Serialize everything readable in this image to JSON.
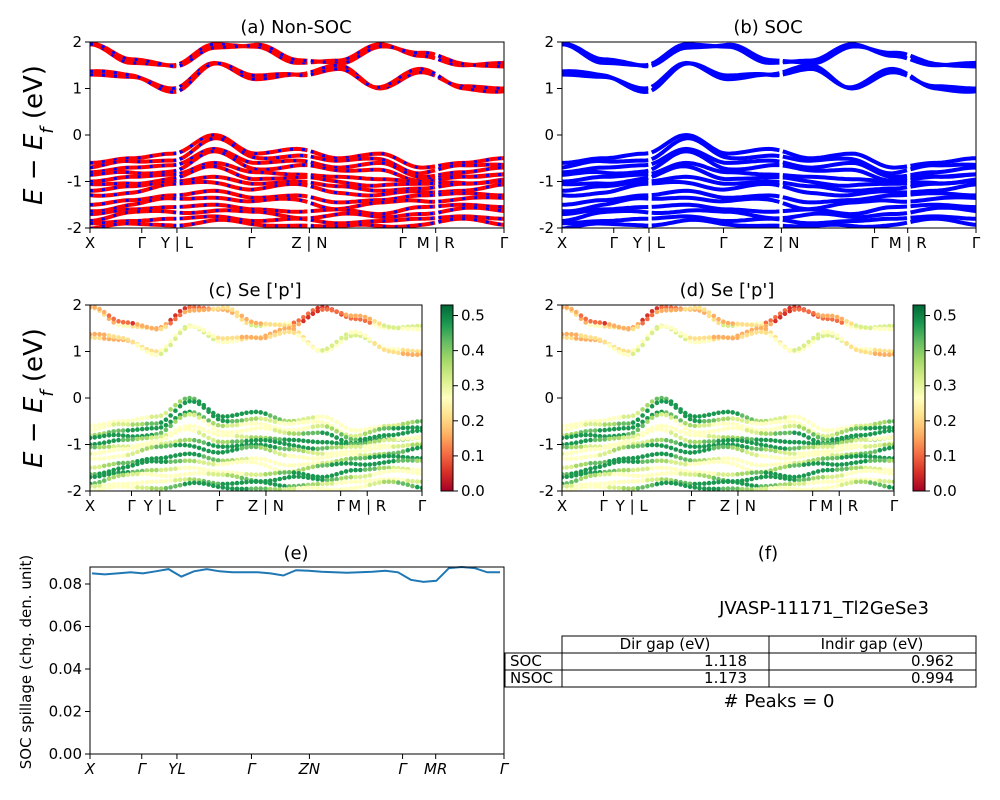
{
  "chart_data": [
    {
      "panel": "a",
      "type": "line",
      "title": "(a) Non-SOC",
      "ylabel": "E - E_f (eV)",
      "ylim": [
        -2,
        2
      ],
      "yticks": [
        -2,
        -1,
        0,
        1,
        2
      ],
      "kpath_labels": [
        "X",
        "Γ",
        "Y | L",
        "Γ",
        "Z | N",
        "Γ",
        "M | R",
        "Γ"
      ],
      "series_colors": [
        "#ff0000",
        "#0000ff"
      ],
      "bands": {
        "conduction_approx": [
          [
            1.95,
            1.55,
            1.5,
            1.95,
            1.9,
            1.55,
            1.6,
            1.95,
            1.7,
            1.5,
            1.55
          ],
          [
            1.3,
            1.25,
            1.0,
            1.55,
            1.2,
            1.3,
            1.5,
            1.0,
            1.35,
            1.05,
            1.0
          ]
        ],
        "valence_approx": [
          [
            -0.6,
            -0.5,
            -0.4,
            0.0,
            -0.4,
            -0.3,
            -0.5,
            -0.4,
            -0.7,
            -0.6,
            -0.5
          ],
          [
            -0.8,
            -0.7,
            -0.65,
            -0.3,
            -0.6,
            -0.55,
            -0.7,
            -0.6,
            -0.9,
            -0.8,
            -0.7
          ],
          [
            -1.0,
            -0.9,
            -0.85,
            -0.6,
            -0.8,
            -0.85,
            -0.9,
            -0.95,
            -1.0,
            -0.9,
            -0.85
          ],
          [
            -1.2,
            -1.1,
            -1.0,
            -0.9,
            -1.05,
            -1.0,
            -1.1,
            -1.2,
            -1.15,
            -1.05,
            -1.0
          ],
          [
            -1.5,
            -1.4,
            -1.3,
            -1.2,
            -1.35,
            -1.3,
            -1.45,
            -1.4,
            -1.3,
            -1.25,
            -1.3
          ],
          [
            -1.7,
            -1.6,
            -1.55,
            -1.5,
            -1.6,
            -1.65,
            -1.6,
            -1.7,
            -1.55,
            -1.5,
            -1.55
          ],
          [
            -1.9,
            -1.85,
            -1.8,
            -1.75,
            -1.85,
            -1.8,
            -1.9,
            -1.85,
            -1.8,
            -1.75,
            -1.8
          ]
        ]
      }
    },
    {
      "panel": "b",
      "type": "line",
      "title": "(b) SOC",
      "ylim": [
        -2,
        2
      ],
      "yticks": [
        -2,
        -1,
        0,
        1,
        2
      ],
      "kpath_labels": [
        "X",
        "Γ",
        "Y | L",
        "Γ",
        "Z | N",
        "Γ",
        "M | R",
        "Γ"
      ],
      "series_colors": [
        "#0000ff"
      ]
    },
    {
      "panel": "c",
      "type": "scatter",
      "title": "(c)  Se ['p']",
      "ylabel": "E - E_f (eV)",
      "ylim": [
        -2,
        2
      ],
      "yticks": [
        -2,
        -1,
        0,
        1,
        2
      ],
      "kpath_labels": [
        "X",
        "Γ",
        "Y | L",
        "Γ",
        "Z | N",
        "Γ",
        "M | R",
        "Γ"
      ],
      "colorbar": {
        "min": 0.0,
        "max": 0.5,
        "ticks": [
          "0.0",
          "0.1",
          "0.2",
          "0.3",
          "0.4",
          "0.5"
        ],
        "colormap": "RdYlGn"
      }
    },
    {
      "panel": "d",
      "type": "scatter",
      "title": "(d) Se ['p']",
      "ylim": [
        -2,
        2
      ],
      "yticks": [
        -2,
        -1,
        0,
        1,
        2
      ],
      "kpath_labels": [
        "X",
        "Γ",
        "Y | L",
        "Γ",
        "Z | N",
        "Γ",
        "M | R",
        "Γ"
      ],
      "colorbar": {
        "min": 0.0,
        "max": 0.5,
        "ticks": [
          "0.0",
          "0.1",
          "0.2",
          "0.3",
          "0.4",
          "0.5"
        ],
        "colormap": "RdYlGn"
      }
    },
    {
      "panel": "e",
      "type": "line",
      "title": "(e)",
      "ylabel": "SOC spillage (chg. den. unit)",
      "ylim": [
        0,
        0.088
      ],
      "yticks": [
        "0.00",
        "0.02",
        "0.04",
        "0.06",
        "0.08"
      ],
      "kpath_labels": [
        "X",
        "Γ",
        "YL",
        "Γ",
        "ZN",
        "Γ",
        "MR",
        "Γ"
      ],
      "series_colors": [
        "#1f77b4"
      ],
      "spillage": [
        0.085,
        0.0845,
        0.085,
        0.0855,
        0.085,
        0.086,
        0.087,
        0.0835,
        0.086,
        0.087,
        0.086,
        0.0855,
        0.0855,
        0.0855,
        0.085,
        0.084,
        0.0865,
        0.0862,
        0.0858,
        0.0855,
        0.0853,
        0.0855,
        0.0858,
        0.0862,
        0.0855,
        0.082,
        0.081,
        0.0815,
        0.0875,
        0.088,
        0.0875,
        0.0855,
        0.0855
      ]
    }
  ],
  "panel_f": {
    "title": "(f)",
    "material": "JVASP-11171_Tl2GeSe3",
    "headers": [
      "",
      "Dir gap (eV)",
      "Indir gap (eV)"
    ],
    "rows": [
      [
        "SOC",
        "1.118",
        "0.962"
      ],
      [
        "NSOC",
        "1.173",
        "0.994"
      ]
    ],
    "peaks": "# Peaks = 0"
  }
}
